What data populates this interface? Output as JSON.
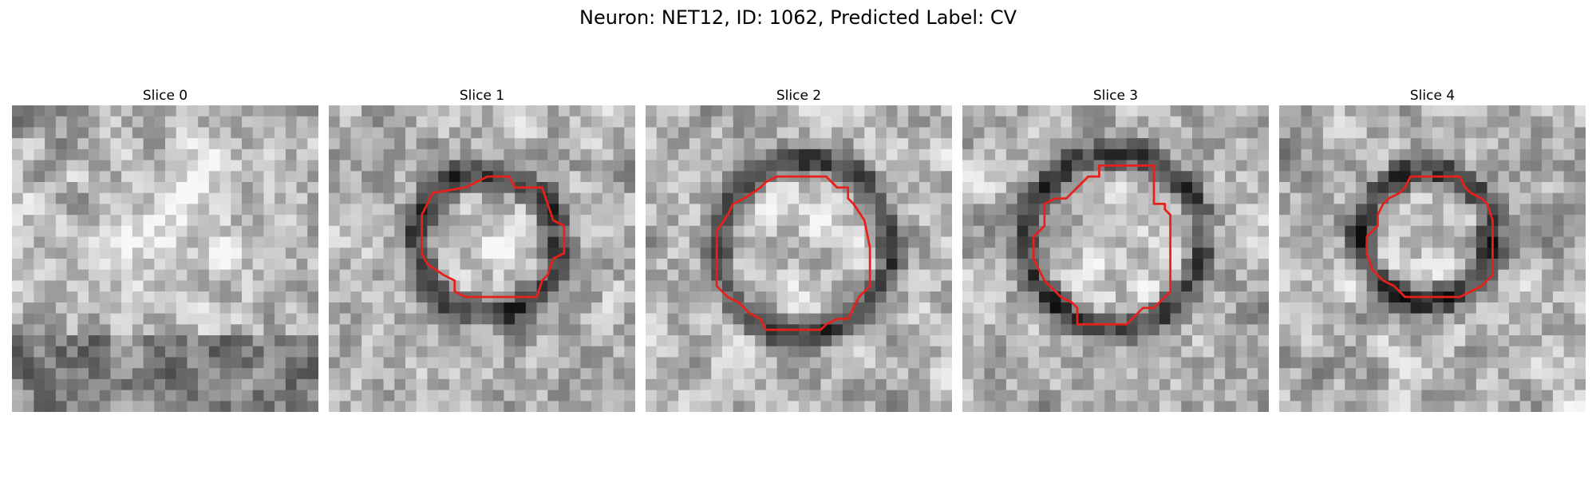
{
  "title": "Neuron: NET12, ID: 1062, Predicted Label: CV",
  "panels": [
    {
      "label": "Slice 0",
      "dark_ring": null,
      "contour": null
    },
    {
      "label": "Slice 1",
      "dark_ring": {
        "cx": 14.5,
        "cy": 12.5,
        "r": 6.5
      },
      "contour": [
        [
          14.5,
          6.5
        ],
        [
          16.5,
          6.5
        ],
        [
          17.0,
          7.5
        ],
        [
          19.5,
          7.5
        ],
        [
          20.0,
          9.0
        ],
        [
          20.5,
          10.5
        ],
        [
          21.5,
          11.0
        ],
        [
          21.5,
          13.5
        ],
        [
          20.5,
          14.0
        ],
        [
          20.0,
          15.5
        ],
        [
          19.5,
          16.0
        ],
        [
          19.0,
          17.5
        ],
        [
          15.5,
          17.5
        ],
        [
          12.5,
          17.5
        ],
        [
          11.5,
          17.0
        ],
        [
          11.5,
          16.0
        ],
        [
          10.5,
          15.5
        ],
        [
          9.0,
          14.5
        ],
        [
          8.5,
          13.5
        ],
        [
          8.5,
          10.0
        ],
        [
          9.0,
          9.0
        ],
        [
          9.5,
          8.0
        ],
        [
          12.5,
          7.5
        ],
        [
          13.5,
          7.0
        ]
      ]
    },
    {
      "label": "Slice 2",
      "dark_ring": {
        "cx": 14.5,
        "cy": 13.0,
        "r": 8.0
      },
      "contour": [
        [
          12.0,
          6.5
        ],
        [
          16.5,
          6.5
        ],
        [
          17.5,
          7.5
        ],
        [
          18.5,
          7.5
        ],
        [
          18.5,
          8.5
        ],
        [
          19.0,
          9.0
        ],
        [
          20.0,
          10.5
        ],
        [
          20.5,
          13.0
        ],
        [
          20.5,
          16.5
        ],
        [
          19.5,
          17.5
        ],
        [
          19.0,
          18.5
        ],
        [
          18.5,
          19.5
        ],
        [
          17.5,
          19.5
        ],
        [
          16.5,
          20.0
        ],
        [
          16.0,
          20.5
        ],
        [
          11.0,
          20.5
        ],
        [
          10.5,
          19.5
        ],
        [
          9.5,
          19.0
        ],
        [
          8.5,
          18.0
        ],
        [
          7.5,
          17.5
        ],
        [
          6.5,
          16.5
        ],
        [
          6.5,
          11.5
        ],
        [
          7.5,
          10.0
        ],
        [
          8.0,
          9.0
        ],
        [
          9.0,
          8.5
        ],
        [
          10.5,
          7.5
        ],
        [
          11.0,
          7.0
        ]
      ]
    },
    {
      "label": "Slice 3",
      "dark_ring": {
        "cx": 14.0,
        "cy": 12.5,
        "r": 8.0
      },
      "contour": [
        [
          12.5,
          5.5
        ],
        [
          17.5,
          5.5
        ],
        [
          17.5,
          9.0
        ],
        [
          18.5,
          9.0
        ],
        [
          18.5,
          9.5
        ],
        [
          19.0,
          10.0
        ],
        [
          19.0,
          17.0
        ],
        [
          18.5,
          17.5
        ],
        [
          18.0,
          18.0
        ],
        [
          17.5,
          18.5
        ],
        [
          16.5,
          18.5
        ],
        [
          16.0,
          19.0
        ],
        [
          15.5,
          19.5
        ],
        [
          15.0,
          20.0
        ],
        [
          10.5,
          20.0
        ],
        [
          10.5,
          18.5
        ],
        [
          10.0,
          18.0
        ],
        [
          9.0,
          17.5
        ],
        [
          8.5,
          17.0
        ],
        [
          7.5,
          16.0
        ],
        [
          7.0,
          15.0
        ],
        [
          6.5,
          14.0
        ],
        [
          6.5,
          12.0
        ],
        [
          7.0,
          11.5
        ],
        [
          7.5,
          11.0
        ],
        [
          7.5,
          9.0
        ],
        [
          8.5,
          8.5
        ],
        [
          9.5,
          8.5
        ],
        [
          10.0,
          8.0
        ],
        [
          10.5,
          7.5
        ],
        [
          11.0,
          7.0
        ],
        [
          11.5,
          6.5
        ],
        [
          12.5,
          6.5
        ]
      ]
    },
    {
      "label": "Slice 4",
      "dark_ring": {
        "cx": 13.5,
        "cy": 12.0,
        "r": 6.0
      },
      "contour": [
        [
          12.0,
          6.5
        ],
        [
          16.5,
          6.5
        ],
        [
          17.0,
          7.5
        ],
        [
          17.5,
          8.0
        ],
        [
          18.5,
          8.5
        ],
        [
          19.0,
          9.0
        ],
        [
          19.5,
          10.5
        ],
        [
          19.5,
          15.5
        ],
        [
          19.0,
          16.0
        ],
        [
          18.5,
          16.5
        ],
        [
          17.5,
          17.0
        ],
        [
          16.5,
          17.5
        ],
        [
          13.5,
          17.5
        ],
        [
          11.5,
          17.5
        ],
        [
          11.0,
          17.0
        ],
        [
          10.5,
          16.5
        ],
        [
          9.5,
          16.0
        ],
        [
          8.5,
          15.0
        ],
        [
          8.0,
          13.5
        ],
        [
          8.0,
          12.0
        ],
        [
          8.5,
          11.5
        ],
        [
          9.0,
          11.0
        ],
        [
          9.0,
          10.0
        ],
        [
          9.5,
          9.0
        ],
        [
          10.0,
          8.5
        ],
        [
          11.0,
          8.0
        ],
        [
          11.5,
          7.5
        ]
      ]
    }
  ],
  "colors": {
    "contour": "#e8201c"
  },
  "grid": 28
}
